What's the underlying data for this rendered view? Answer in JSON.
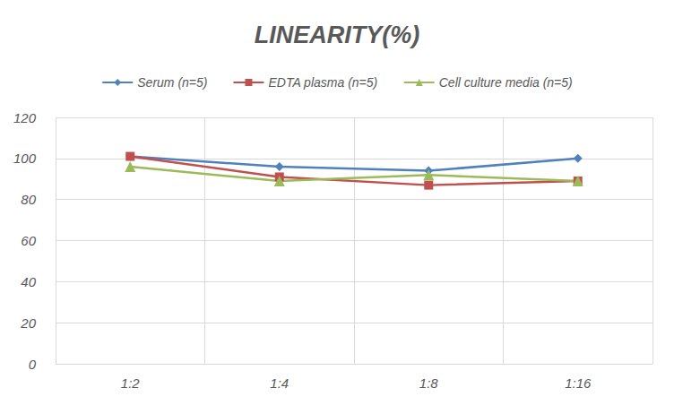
{
  "chart_data": {
    "type": "line",
    "title": "LINEARITY(%)",
    "categories": [
      "1:2",
      "1:4",
      "1:8",
      "1:16"
    ],
    "series": [
      {
        "name": "Serum (n=5)",
        "color": "#4F81BD",
        "marker": "diamond",
        "values": [
          101,
          96,
          94,
          100
        ]
      },
      {
        "name": "EDTA plasma (n=5)",
        "color": "#C0504D",
        "marker": "square",
        "values": [
          101,
          91,
          87,
          89
        ]
      },
      {
        "name": "Cell culture media (n=5)",
        "color": "#9BBB59",
        "marker": "triangle",
        "values": [
          96,
          89,
          92,
          89
        ]
      }
    ],
    "ylim": [
      0,
      120
    ],
    "yticks": [
      0,
      20,
      40,
      60,
      80,
      100,
      120
    ],
    "grid": true,
    "legend": "top"
  }
}
